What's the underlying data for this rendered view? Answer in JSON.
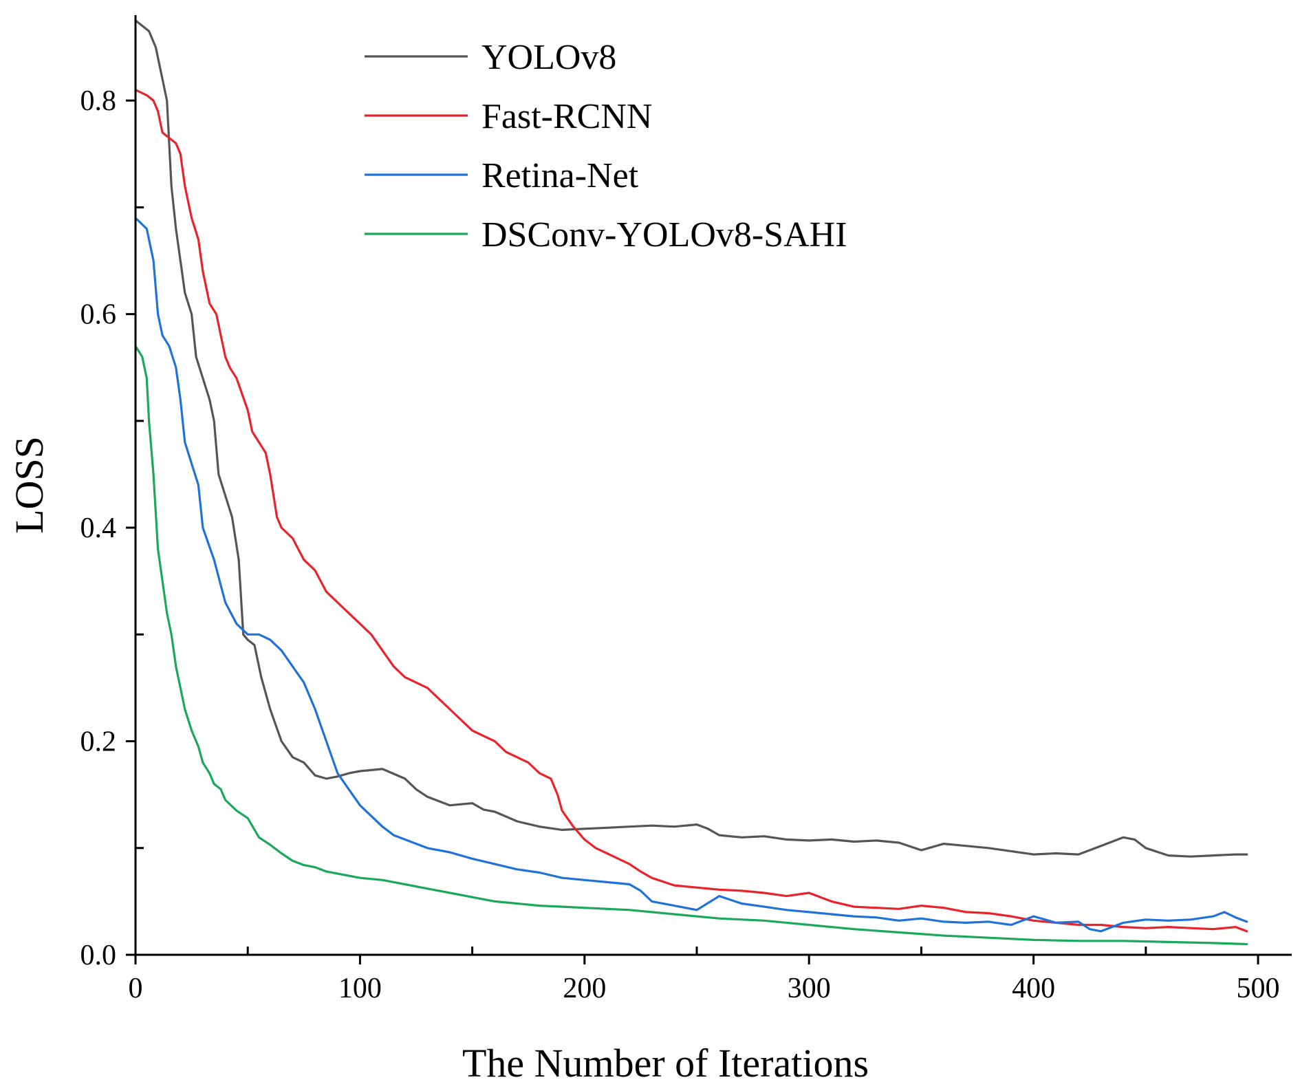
{
  "chart_data": {
    "type": "line",
    "title": "",
    "xlabel": "The Number of Iterations",
    "ylabel": "LOSS",
    "xlim": [
      0,
      515
    ],
    "ylim": [
      0,
      0.88
    ],
    "xticks": [
      0,
      100,
      200,
      300,
      400,
      500
    ],
    "xtick_labels": [
      "0",
      "100",
      "200",
      "300",
      "400",
      "500"
    ],
    "yticks": [
      0.0,
      0.2,
      0.4,
      0.6,
      0.8
    ],
    "ytick_labels": [
      "0.0",
      "0.2",
      "0.4",
      "0.6",
      "0.8"
    ],
    "x_minor_ticks": [
      50,
      150,
      250,
      350,
      450
    ],
    "y_minor_ticks": [
      0.1,
      0.3,
      0.5,
      0.7
    ],
    "grid": false,
    "legend_position": "top-left",
    "series": [
      {
        "name": "YOLOv8",
        "color": "#555555",
        "x": [
          0,
          3,
          6,
          9,
          12,
          14,
          16,
          18,
          20,
          22,
          25,
          27,
          30,
          33,
          35,
          37,
          40,
          43,
          46,
          48,
          50,
          53,
          56,
          60,
          65,
          70,
          75,
          80,
          85,
          90,
          95,
          100,
          110,
          120,
          125,
          130,
          140,
          150,
          155,
          160,
          170,
          180,
          190,
          200,
          210,
          220,
          230,
          240,
          250,
          255,
          260,
          270,
          280,
          290,
          300,
          310,
          320,
          330,
          340,
          350,
          360,
          370,
          380,
          390,
          400,
          410,
          420,
          430,
          440,
          445,
          450,
          460,
          470,
          480,
          490,
          495
        ],
        "y": [
          0.875,
          0.87,
          0.865,
          0.85,
          0.82,
          0.8,
          0.72,
          0.68,
          0.65,
          0.62,
          0.6,
          0.56,
          0.54,
          0.52,
          0.5,
          0.45,
          0.43,
          0.41,
          0.37,
          0.3,
          0.295,
          0.29,
          0.26,
          0.23,
          0.2,
          0.185,
          0.18,
          0.168,
          0.165,
          0.167,
          0.17,
          0.172,
          0.174,
          0.165,
          0.155,
          0.148,
          0.14,
          0.142,
          0.136,
          0.134,
          0.125,
          0.12,
          0.117,
          0.118,
          0.119,
          0.12,
          0.121,
          0.12,
          0.122,
          0.118,
          0.112,
          0.11,
          0.111,
          0.108,
          0.107,
          0.108,
          0.106,
          0.107,
          0.105,
          0.098,
          0.104,
          0.102,
          0.1,
          0.097,
          0.094,
          0.095,
          0.094,
          0.102,
          0.11,
          0.108,
          0.1,
          0.093,
          0.092,
          0.093,
          0.094,
          0.094
        ]
      },
      {
        "name": "Fast-RCNN",
        "color": "#e8232a",
        "x": [
          0,
          5,
          8,
          10,
          12,
          15,
          18,
          20,
          22,
          25,
          28,
          30,
          33,
          36,
          40,
          42,
          45,
          50,
          52,
          55,
          58,
          60,
          63,
          65,
          70,
          75,
          80,
          85,
          90,
          95,
          100,
          105,
          110,
          115,
          120,
          125,
          130,
          135,
          140,
          145,
          150,
          155,
          160,
          165,
          170,
          175,
          180,
          185,
          188,
          190,
          195,
          200,
          205,
          210,
          215,
          220,
          225,
          230,
          240,
          250,
          260,
          270,
          280,
          290,
          300,
          310,
          320,
          330,
          340,
          350,
          360,
          370,
          380,
          390,
          400,
          410,
          420,
          430,
          440,
          450,
          460,
          470,
          480,
          490,
          495
        ],
        "y": [
          0.81,
          0.805,
          0.8,
          0.79,
          0.77,
          0.765,
          0.76,
          0.75,
          0.72,
          0.69,
          0.67,
          0.64,
          0.61,
          0.6,
          0.56,
          0.55,
          0.54,
          0.51,
          0.49,
          0.48,
          0.47,
          0.45,
          0.41,
          0.4,
          0.39,
          0.37,
          0.36,
          0.34,
          0.33,
          0.32,
          0.31,
          0.3,
          0.285,
          0.27,
          0.26,
          0.255,
          0.25,
          0.24,
          0.23,
          0.22,
          0.21,
          0.205,
          0.2,
          0.19,
          0.185,
          0.18,
          0.17,
          0.165,
          0.15,
          0.135,
          0.12,
          0.108,
          0.1,
          0.095,
          0.09,
          0.085,
          0.078,
          0.072,
          0.065,
          0.063,
          0.061,
          0.06,
          0.058,
          0.055,
          0.058,
          0.05,
          0.045,
          0.044,
          0.043,
          0.046,
          0.044,
          0.04,
          0.039,
          0.036,
          0.032,
          0.03,
          0.028,
          0.028,
          0.026,
          0.025,
          0.026,
          0.025,
          0.024,
          0.026,
          0.022
        ]
      },
      {
        "name": "Retina-Net",
        "color": "#1f72d8",
        "x": [
          0,
          5,
          8,
          10,
          12,
          15,
          18,
          20,
          22,
          25,
          28,
          30,
          35,
          40,
          45,
          50,
          55,
          60,
          65,
          70,
          75,
          80,
          85,
          90,
          95,
          100,
          105,
          110,
          115,
          120,
          130,
          140,
          150,
          160,
          170,
          180,
          190,
          200,
          210,
          220,
          225,
          230,
          240,
          250,
          260,
          270,
          280,
          290,
          300,
          310,
          320,
          330,
          340,
          350,
          360,
          370,
          380,
          390,
          400,
          410,
          420,
          425,
          430,
          440,
          450,
          460,
          470,
          480,
          485,
          490,
          495
        ],
        "y": [
          0.69,
          0.68,
          0.65,
          0.6,
          0.58,
          0.57,
          0.55,
          0.52,
          0.48,
          0.46,
          0.44,
          0.4,
          0.37,
          0.33,
          0.31,
          0.3,
          0.3,
          0.295,
          0.285,
          0.27,
          0.255,
          0.23,
          0.2,
          0.17,
          0.155,
          0.14,
          0.13,
          0.12,
          0.112,
          0.108,
          0.1,
          0.096,
          0.09,
          0.085,
          0.08,
          0.077,
          0.072,
          0.07,
          0.068,
          0.066,
          0.06,
          0.05,
          0.046,
          0.042,
          0.055,
          0.048,
          0.045,
          0.042,
          0.04,
          0.038,
          0.036,
          0.035,
          0.032,
          0.034,
          0.031,
          0.03,
          0.031,
          0.028,
          0.036,
          0.03,
          0.031,
          0.024,
          0.022,
          0.03,
          0.033,
          0.032,
          0.033,
          0.036,
          0.04,
          0.035,
          0.031
        ]
      },
      {
        "name": "DSConv-YOLOv8-SAHI",
        "color": "#1aa85a",
        "x": [
          0,
          3,
          5,
          6,
          8,
          10,
          12,
          14,
          16,
          18,
          20,
          22,
          25,
          28,
          30,
          33,
          35,
          38,
          40,
          45,
          50,
          55,
          60,
          65,
          70,
          75,
          80,
          85,
          90,
          95,
          100,
          110,
          120,
          130,
          140,
          150,
          160,
          170,
          180,
          190,
          200,
          220,
          240,
          260,
          280,
          300,
          320,
          340,
          360,
          380,
          400,
          420,
          440,
          460,
          480,
          495
        ],
        "y": [
          0.57,
          0.56,
          0.54,
          0.5,
          0.45,
          0.38,
          0.35,
          0.32,
          0.3,
          0.27,
          0.25,
          0.23,
          0.21,
          0.195,
          0.18,
          0.17,
          0.16,
          0.155,
          0.145,
          0.135,
          0.128,
          0.11,
          0.103,
          0.095,
          0.088,
          0.084,
          0.082,
          0.078,
          0.076,
          0.074,
          0.072,
          0.07,
          0.066,
          0.062,
          0.058,
          0.054,
          0.05,
          0.048,
          0.046,
          0.045,
          0.044,
          0.042,
          0.038,
          0.034,
          0.032,
          0.028,
          0.024,
          0.021,
          0.018,
          0.016,
          0.014,
          0.013,
          0.013,
          0.012,
          0.011,
          0.01
        ]
      }
    ]
  }
}
